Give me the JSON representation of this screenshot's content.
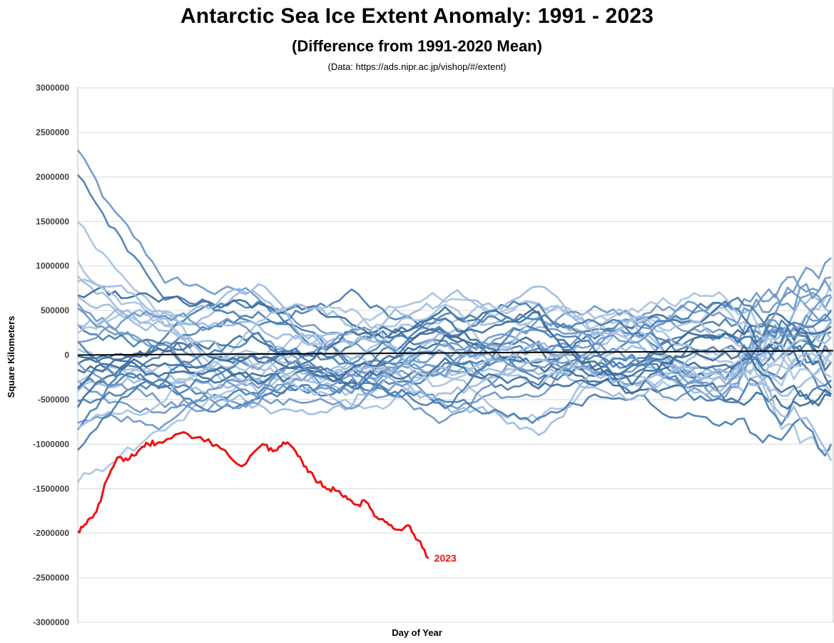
{
  "chart_data": {
    "type": "line",
    "title": "Antarctic Sea Ice Extent Anomaly: 1991 - 2023",
    "subtitle": "(Difference from 1991-2020 Mean)",
    "source": "(Data: https://ads.nipr.ac.jp/vishop/#/extent)",
    "xlabel": "Day of Year",
    "ylabel": "Square Kilometers",
    "ylim": [
      -3000000,
      3000000
    ],
    "xlim": [
      1,
      365
    ],
    "yticks": [
      "3000000",
      "2500000",
      "2000000",
      "1500000",
      "1000000",
      "500000",
      "0",
      "-500000",
      "-1000000",
      "-1500000",
      "-2000000",
      "-2500000",
      "-3000000"
    ],
    "grid": true,
    "colors": {
      "historical": [
        "#6f99c9",
        "#4a7fb5",
        "#a9c4e1",
        "#9dbcdf",
        "#3d6f9e"
      ],
      "highlight": "#ee1111",
      "zero_line": "#000000"
    },
    "series": [
      {
        "name": "2023",
        "color": "#ee1111",
        "x": [
          1,
          5,
          10,
          15,
          20,
          25,
          30,
          35,
          40,
          50,
          60,
          70,
          80,
          90,
          95,
          100,
          105,
          110,
          115,
          120,
          125,
          130,
          135,
          140,
          145,
          150,
          155,
          160,
          165,
          170
        ],
        "y": [
          -1980000,
          -1900000,
          -1760000,
          -1400000,
          -1150000,
          -1180000,
          -1080000,
          -1000000,
          -980000,
          -880000,
          -920000,
          -1050000,
          -1250000,
          -1000000,
          -1080000,
          -980000,
          -1050000,
          -1250000,
          -1380000,
          -1480000,
          -1520000,
          -1580000,
          -1680000,
          -1650000,
          -1820000,
          -1880000,
          -1960000,
          -1910000,
          -2080000,
          -2280000
        ]
      }
    ],
    "annotation": "2023"
  }
}
